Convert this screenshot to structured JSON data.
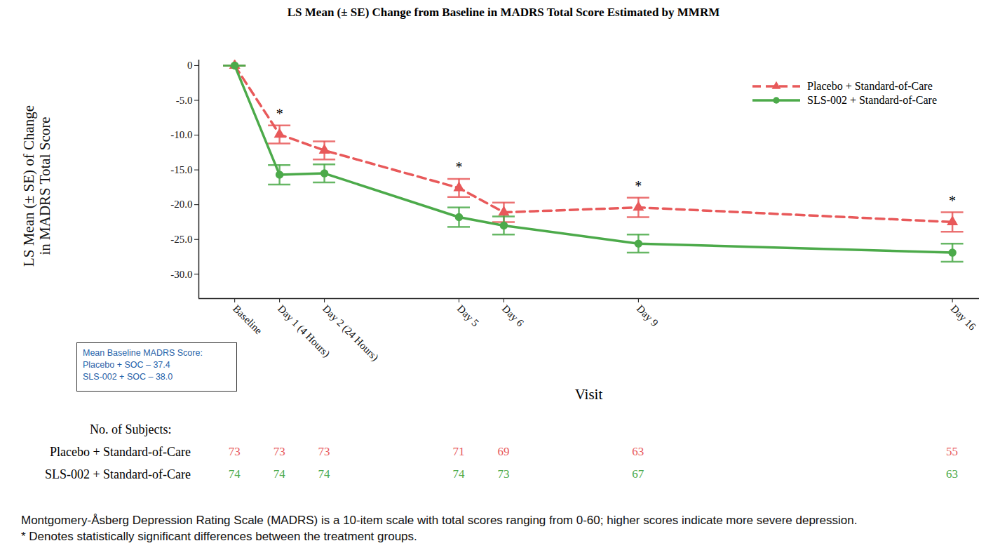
{
  "chart_data": {
    "type": "line",
    "title": "LS Mean (± SE) Change from Baseline in MADRS Total Score Estimated by MMRM",
    "xlabel": "Visit",
    "ylabel": [
      "LS Mean (± SE) of Change",
      "in MADRS Total Score"
    ],
    "x": [
      0,
      1,
      2,
      5,
      6,
      9,
      16
    ],
    "xlim": [
      -0.8,
      16.6
    ],
    "xticks": [
      {
        "value": 0,
        "label": "Baseline"
      },
      {
        "value": 1,
        "label": "Day 1 (4 Hours)"
      },
      {
        "value": 2,
        "label": "Day 2 (24 Hours)"
      },
      {
        "value": 5,
        "label": "Day 5"
      },
      {
        "value": 6,
        "label": "Day 6"
      },
      {
        "value": 9,
        "label": "Day 9"
      },
      {
        "value": 16,
        "label": "Day 16"
      }
    ],
    "ylim": [
      -33.5,
      0.8
    ],
    "yticks": [
      {
        "value": 0,
        "label": "0"
      },
      {
        "value": -5,
        "label": "-5.0"
      },
      {
        "value": -10,
        "label": "-10.0"
      },
      {
        "value": -15,
        "label": "-15.0"
      },
      {
        "value": -20,
        "label": "-20.0"
      },
      {
        "value": -25,
        "label": "-25.0"
      },
      {
        "value": -30,
        "label": "-30.0"
      }
    ],
    "legend": "upper right",
    "series": [
      {
        "name": "Placebo + Standard-of-Care",
        "color": "#e8595a",
        "line_style": "dashed",
        "marker": "triangle",
        "values": [
          0,
          -9.9,
          -12.2,
          -17.6,
          -21.1,
          -20.4,
          -22.5
        ],
        "se": [
          0,
          1.3,
          1.3,
          1.3,
          1.4,
          1.4,
          1.4
        ],
        "n": [
          73,
          73,
          73,
          71,
          69,
          63,
          55
        ]
      },
      {
        "name": "SLS-002 + Standard-of-Care",
        "color": "#4caa4a",
        "line_style": "solid",
        "marker": "circle",
        "values": [
          0,
          -15.7,
          -15.5,
          -21.8,
          -23.0,
          -25.6,
          -26.9
        ],
        "se": [
          0,
          1.4,
          1.3,
          1.4,
          1.3,
          1.3,
          1.3
        ],
        "n": [
          74,
          74,
          74,
          74,
          73,
          67,
          63
        ]
      }
    ],
    "annotations": [
      {
        "x": 1,
        "text": "*"
      },
      {
        "x": 5,
        "text": "*"
      },
      {
        "x": 9,
        "text": "*"
      },
      {
        "x": 16,
        "text": "*"
      }
    ],
    "n_label": "No. of Subjects:",
    "baseline_note": [
      "Mean Baseline MADRS Score:",
      "Placebo + SOC – 37.4",
      "SLS-002 + SOC – 38.0"
    ],
    "notes": [
      "Montgomery-Åsberg Depression Rating Scale (MADRS) is a 10-item scale with total scores ranging from 0-60; higher scores indicate more severe depression.",
      "* Denotes statistically significant differences between the treatment groups."
    ]
  }
}
